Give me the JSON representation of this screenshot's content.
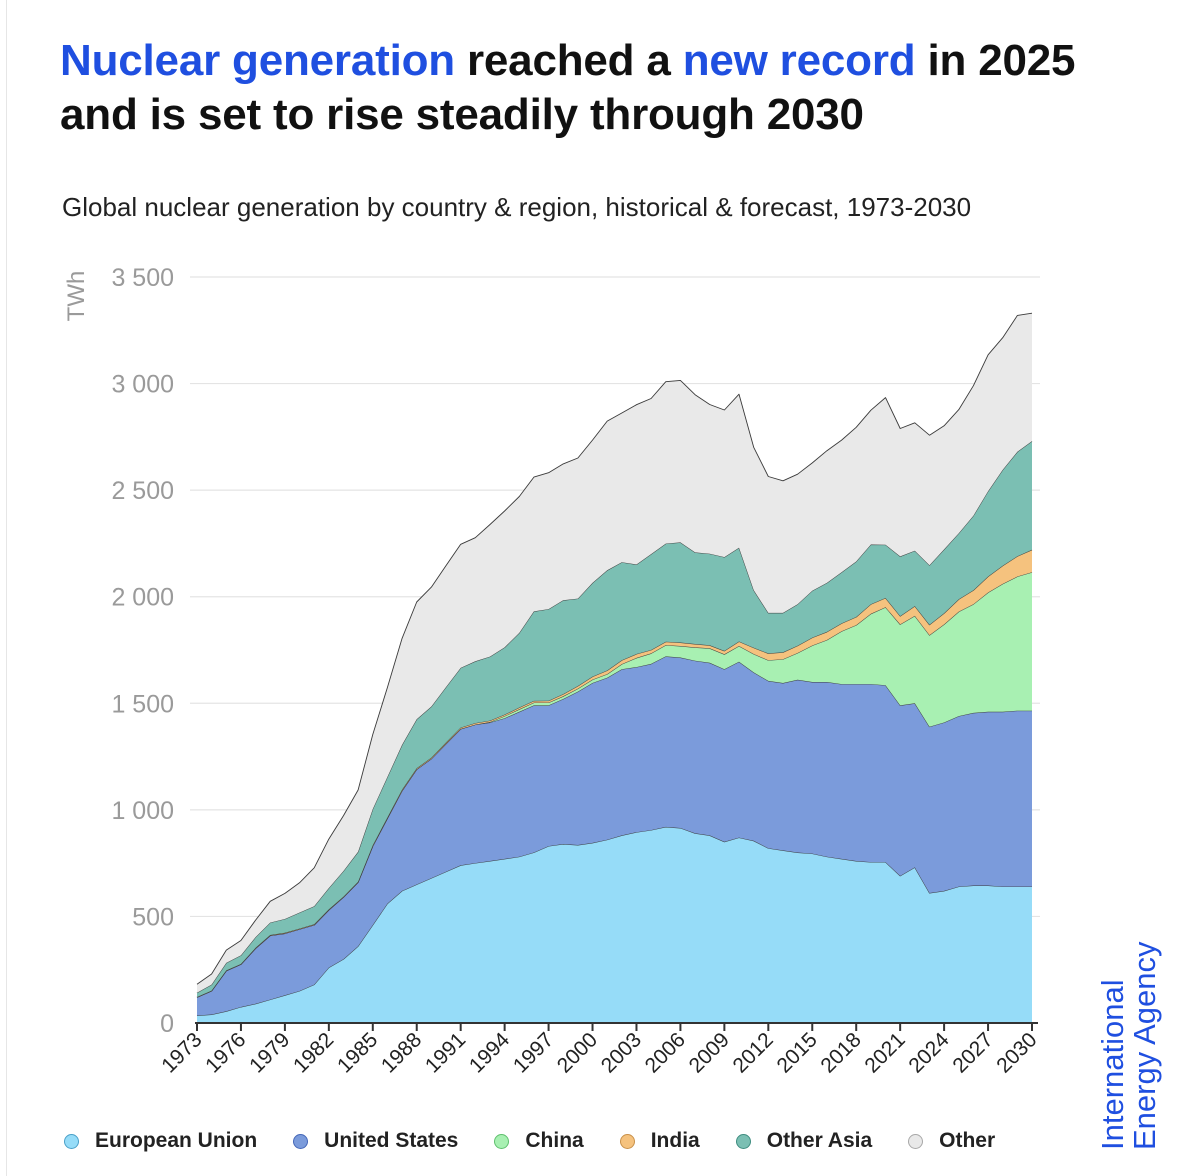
{
  "title": {
    "part1": "Nuclear generation",
    "part2": " reached a ",
    "part3": "new record",
    "part4": " in 2025 and is set to rise steadily through 2030"
  },
  "colors": {
    "accent": "#1f4fe0",
    "European Union": "#96dcf8",
    "United States": "#7b9bdb",
    "China": "#a8f0b2",
    "India": "#f5c27e",
    "Other Asia": "#7bbfb3",
    "Other": "#e9e9e9"
  },
  "logo": {
    "line1": "International",
    "line2": "Energy Agency"
  },
  "chart_data": {
    "type": "area",
    "stacked": true,
    "subtitle": "Global nuclear generation by country & region, historical & forecast, 1973-2030",
    "ylabel": "TWh",
    "ylim": [
      0,
      3500
    ],
    "yticks": [
      0,
      500,
      1000,
      1500,
      2000,
      2500,
      3000,
      3500
    ],
    "ytick_labels": [
      "0",
      "500",
      "1 000",
      "1 500",
      "2 000",
      "2 500",
      "3 000",
      "3 500"
    ],
    "x_labels": [
      "1973",
      "1976",
      "1979",
      "1982",
      "1985",
      "1988",
      "1991",
      "1994",
      "1997",
      "2000",
      "2003",
      "2006",
      "2009",
      "2012",
      "2015",
      "2018",
      "2021",
      "2024",
      "2027",
      "2030"
    ],
    "grid": true,
    "legend_position": "bottom",
    "x": [
      1973,
      1974,
      1975,
      1976,
      1977,
      1978,
      1979,
      1980,
      1981,
      1982,
      1983,
      1984,
      1985,
      1986,
      1987,
      1988,
      1989,
      1990,
      1991,
      1992,
      1993,
      1994,
      1995,
      1996,
      1997,
      1998,
      1999,
      2000,
      2001,
      2002,
      2003,
      2004,
      2005,
      2006,
      2007,
      2008,
      2009,
      2010,
      2011,
      2012,
      2013,
      2014,
      2015,
      2016,
      2017,
      2018,
      2019,
      2020,
      2021,
      2022,
      2023,
      2024,
      2025,
      2026,
      2027,
      2028,
      2029,
      2030
    ],
    "series": [
      {
        "name": "European Union",
        "values": [
          35,
          40,
          55,
          75,
          90,
          110,
          130,
          150,
          180,
          260,
          300,
          360,
          460,
          560,
          620,
          650,
          680,
          710,
          740,
          750,
          760,
          770,
          780,
          800,
          830,
          840,
          835,
          845,
          860,
          880,
          895,
          905,
          920,
          915,
          890,
          880,
          850,
          870,
          855,
          820,
          810,
          800,
          795,
          780,
          770,
          760,
          755,
          755,
          690,
          730,
          610,
          620,
          640,
          645,
          645,
          640,
          640,
          640
        ]
      },
      {
        "name": "United States",
        "values": [
          85,
          110,
          190,
          200,
          260,
          300,
          290,
          290,
          280,
          270,
          290,
          300,
          370,
          400,
          470,
          540,
          560,
          600,
          640,
          650,
          650,
          660,
          680,
          690,
          660,
          680,
          720,
          750,
          760,
          780,
          775,
          780,
          800,
          800,
          810,
          810,
          810,
          825,
          790,
          785,
          785,
          810,
          805,
          820,
          820,
          830,
          835,
          830,
          800,
          770,
          780,
          790,
          800,
          810,
          815,
          820,
          825,
          825
        ]
      },
      {
        "name": "China",
        "values": [
          0,
          0,
          0,
          0,
          0,
          0,
          0,
          0,
          0,
          0,
          0,
          0,
          0,
          0,
          0,
          0,
          0,
          0,
          0,
          0,
          2,
          10,
          12,
          13,
          13,
          13,
          14,
          16,
          17,
          24,
          43,
          49,
          53,
          54,
          62,
          68,
          70,
          74,
          86,
          97,
          112,
          126,
          171,
          197,
          248,
          277,
          330,
          366,
          380,
          410,
          430,
          460,
          490,
          510,
          560,
          600,
          630,
          650
        ]
      },
      {
        "name": "India",
        "values": [
          2,
          2,
          2,
          2,
          3,
          3,
          3,
          3,
          3,
          3,
          3,
          3,
          4,
          4,
          5,
          5,
          5,
          6,
          6,
          7,
          7,
          7,
          8,
          8,
          9,
          10,
          12,
          14,
          17,
          18,
          18,
          16,
          16,
          16,
          16,
          14,
          16,
          21,
          30,
          32,
          32,
          34,
          37,
          38,
          37,
          38,
          45,
          43,
          39,
          46,
          48,
          52,
          58,
          65,
          75,
          85,
          95,
          105
        ]
      },
      {
        "name": "Other Asia",
        "values": [
          20,
          28,
          35,
          40,
          50,
          58,
          65,
          75,
          85,
          100,
          120,
          140,
          170,
          190,
          210,
          230,
          240,
          260,
          280,
          290,
          300,
          315,
          350,
          420,
          430,
          440,
          410,
          440,
          470,
          460,
          420,
          450,
          460,
          470,
          430,
          430,
          440,
          440,
          270,
          190,
          185,
          195,
          220,
          230,
          240,
          260,
          280,
          250,
          280,
          260,
          280,
          300,
          310,
          350,
          400,
          450,
          490,
          510
        ]
      },
      {
        "name": "Other",
        "values": [
          40,
          50,
          60,
          70,
          80,
          100,
          120,
          140,
          180,
          230,
          260,
          290,
          350,
          420,
          500,
          550,
          560,
          570,
          580,
          580,
          620,
          640,
          640,
          630,
          640,
          640,
          660,
          670,
          700,
          700,
          750,
          730,
          760,
          760,
          740,
          700,
          690,
          720,
          670,
          640,
          620,
          610,
          600,
          620,
          620,
          630,
          630,
          690,
          600,
          600,
          610,
          580,
          580,
          610,
          640,
          620,
          640,
          600
        ]
      }
    ]
  }
}
